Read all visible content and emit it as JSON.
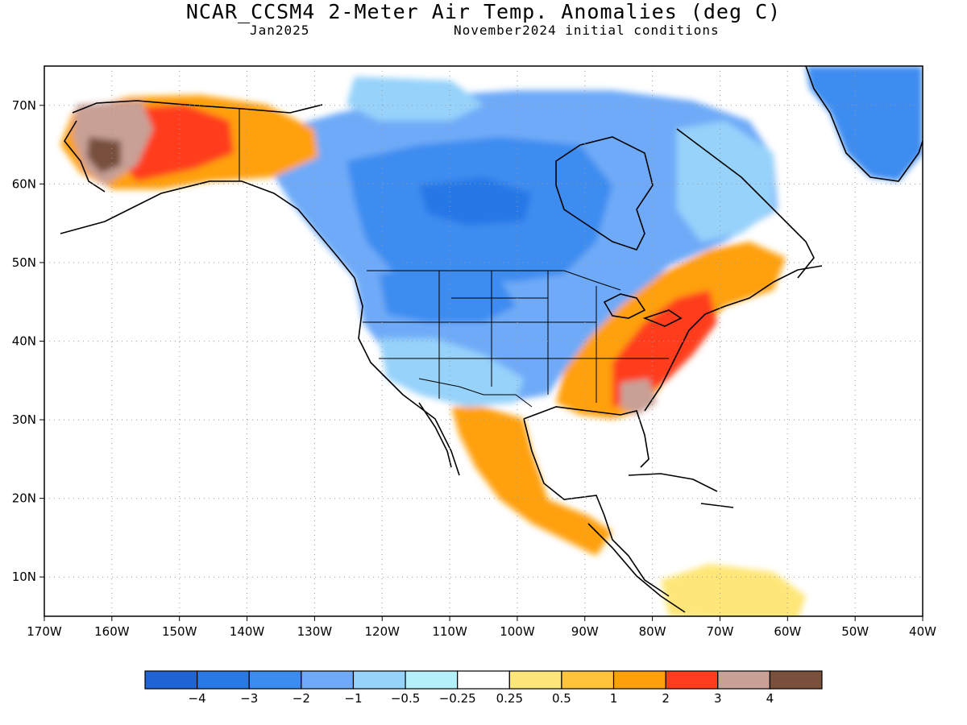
{
  "header": {
    "title": "NCAR_CCSM4 2-Meter Air Temp. Anomalies (deg C)",
    "valid_month": "Jan2025",
    "init_conditions": "November2024 initial conditions"
  },
  "map_data": {
    "type": "filled-contour-map",
    "variable": "2-Meter Air Temp. Anomalies",
    "units": "deg C",
    "domain": {
      "lon_range": [
        -170,
        -40
      ],
      "lat_range": [
        5,
        75
      ]
    },
    "lon_ticks": [
      "170W",
      "160W",
      "150W",
      "140W",
      "130W",
      "120W",
      "110W",
      "100W",
      "90W",
      "80W",
      "70W",
      "60W",
      "50W",
      "40W"
    ],
    "lat_ticks": [
      "70N",
      "60N",
      "50N",
      "40N",
      "30N",
      "20N",
      "10N"
    ],
    "grid": "dotted",
    "regions": [
      {
        "name": "Alaska west",
        "anomaly_range": [
          3,
          4
        ]
      },
      {
        "name": "Alaska central",
        "anomaly_range": [
          2,
          3
        ]
      },
      {
        "name": "Yukon / Alaska east",
        "anomaly_range": [
          1,
          2
        ]
      },
      {
        "name": "Canada prairies",
        "anomaly_range": [
          -3,
          -2
        ]
      },
      {
        "name": "Northern US Rockies / Plains",
        "anomaly_range": [
          -2,
          -1
        ]
      },
      {
        "name": "Southwest US",
        "anomaly_range": [
          -1,
          -0.5
        ]
      },
      {
        "name": "US East / Mid-Atlantic",
        "anomaly_range": [
          2,
          3
        ]
      },
      {
        "name": "Southeast US",
        "anomaly_range": [
          1,
          2
        ]
      },
      {
        "name": "Georgia",
        "anomaly_range": [
          3,
          4
        ]
      },
      {
        "name": "Mexico",
        "anomaly_range": [
          1,
          2
        ]
      },
      {
        "name": "Greenland",
        "anomaly_range": [
          -2,
          -1
        ]
      }
    ]
  },
  "colorbar": {
    "labels": [
      "−4",
      "−3",
      "−2",
      "−1",
      "−0.5",
      "−0.25",
      "0.25",
      "0.5",
      "1",
      "2",
      "3",
      "4"
    ],
    "colors": [
      "#1e64d2",
      "#2878e6",
      "#3c8cf0",
      "#6eaaf8",
      "#96d2fa",
      "#b4f0fa",
      "#ffffff",
      "#ffe678",
      "#ffc33c",
      "#ffa00a",
      "#ff3c1e",
      "#c8a096",
      "#78503c"
    ]
  }
}
